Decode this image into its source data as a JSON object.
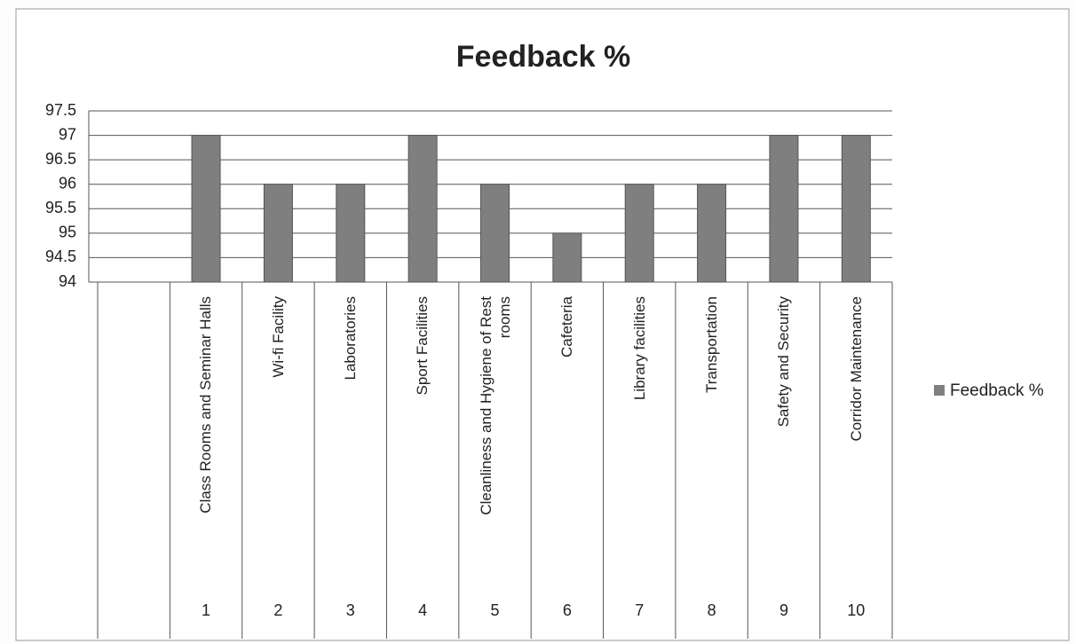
{
  "chart_data": {
    "type": "bar",
    "title": "Feedback %",
    "categories": [
      "Class Rooms and Seminar Halls",
      "Wi-fi Facility",
      "Laboratories",
      "Sport Facilities",
      "Cleanliness and Hygiene of Rest rooms",
      "Cafeteria",
      "Library facilities",
      "Transportation",
      "Safety and Security",
      "Corridor Maintenance"
    ],
    "category_numbers": [
      1,
      2,
      3,
      4,
      5,
      6,
      7,
      8,
      9,
      10
    ],
    "series": [
      {
        "name": "Feedback %",
        "color": "#7f7f7f",
        "values": [
          97,
          96,
          96,
          97,
          96,
          95,
          96,
          96,
          97,
          97
        ]
      }
    ],
    "ylim": [
      94,
      97.5
    ],
    "yticks": [
      94,
      94.5,
      95,
      95.5,
      96,
      96.5,
      97,
      97.5
    ],
    "grid": true,
    "legend": "right"
  }
}
